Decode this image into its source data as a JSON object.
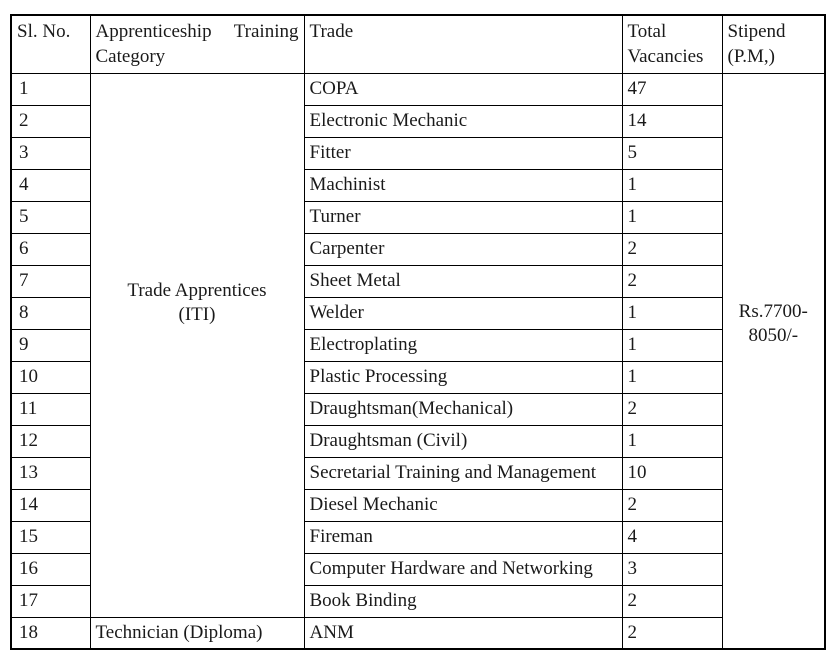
{
  "colors": {
    "background": "#ffffff",
    "border": "#000000",
    "text": "#1a1a1a"
  },
  "table": {
    "headers": [
      "Sl. No.",
      "Apprenticeship Training Category",
      "Trade",
      "Total Vacancies",
      "Stipend (P.M,)"
    ],
    "category_iti": {
      "line1": "Trade Apprentices",
      "line2": "(ITI)"
    },
    "stipend": {
      "line1": "Rs.7700-",
      "line2": "8050/-"
    },
    "rows": [
      {
        "sl": "1",
        "trade": "COPA",
        "vacancies": "47"
      },
      {
        "sl": "2",
        "trade": "Electronic Mechanic",
        "vacancies": "14"
      },
      {
        "sl": "3",
        "trade": "Fitter",
        "vacancies": "5"
      },
      {
        "sl": "4",
        "trade": "Machinist",
        "vacancies": "1"
      },
      {
        "sl": "5",
        "trade": "Turner",
        "vacancies": "1"
      },
      {
        "sl": "6",
        "trade": "Carpenter",
        "vacancies": "2"
      },
      {
        "sl": "7",
        "trade": "Sheet Metal",
        "vacancies": "2"
      },
      {
        "sl": "8",
        "trade": "Welder",
        "vacancies": "1"
      },
      {
        "sl": "9",
        "trade": "Electroplating",
        "vacancies": "1"
      },
      {
        "sl": "10",
        "trade": "Plastic Processing",
        "vacancies": "1"
      },
      {
        "sl": "11",
        "trade": "Draughtsman(Mechanical)",
        "vacancies": "2"
      },
      {
        "sl": "12",
        "trade": "Draughtsman (Civil)",
        "vacancies": "1"
      },
      {
        "sl": "13",
        "trade": "Secretarial Training and Management",
        "vacancies": "10"
      },
      {
        "sl": "14",
        "trade": "Diesel Mechanic",
        "vacancies": "2"
      },
      {
        "sl": "15",
        "trade": "Fireman",
        "vacancies": "4"
      },
      {
        "sl": "16",
        "trade": "Computer Hardware and Networking",
        "vacancies": "3"
      },
      {
        "sl": "17",
        "trade": "Book Binding",
        "vacancies": "2"
      },
      {
        "sl": "18",
        "category": "Technician (Diploma)",
        "trade": "ANM",
        "vacancies": "2"
      }
    ]
  }
}
